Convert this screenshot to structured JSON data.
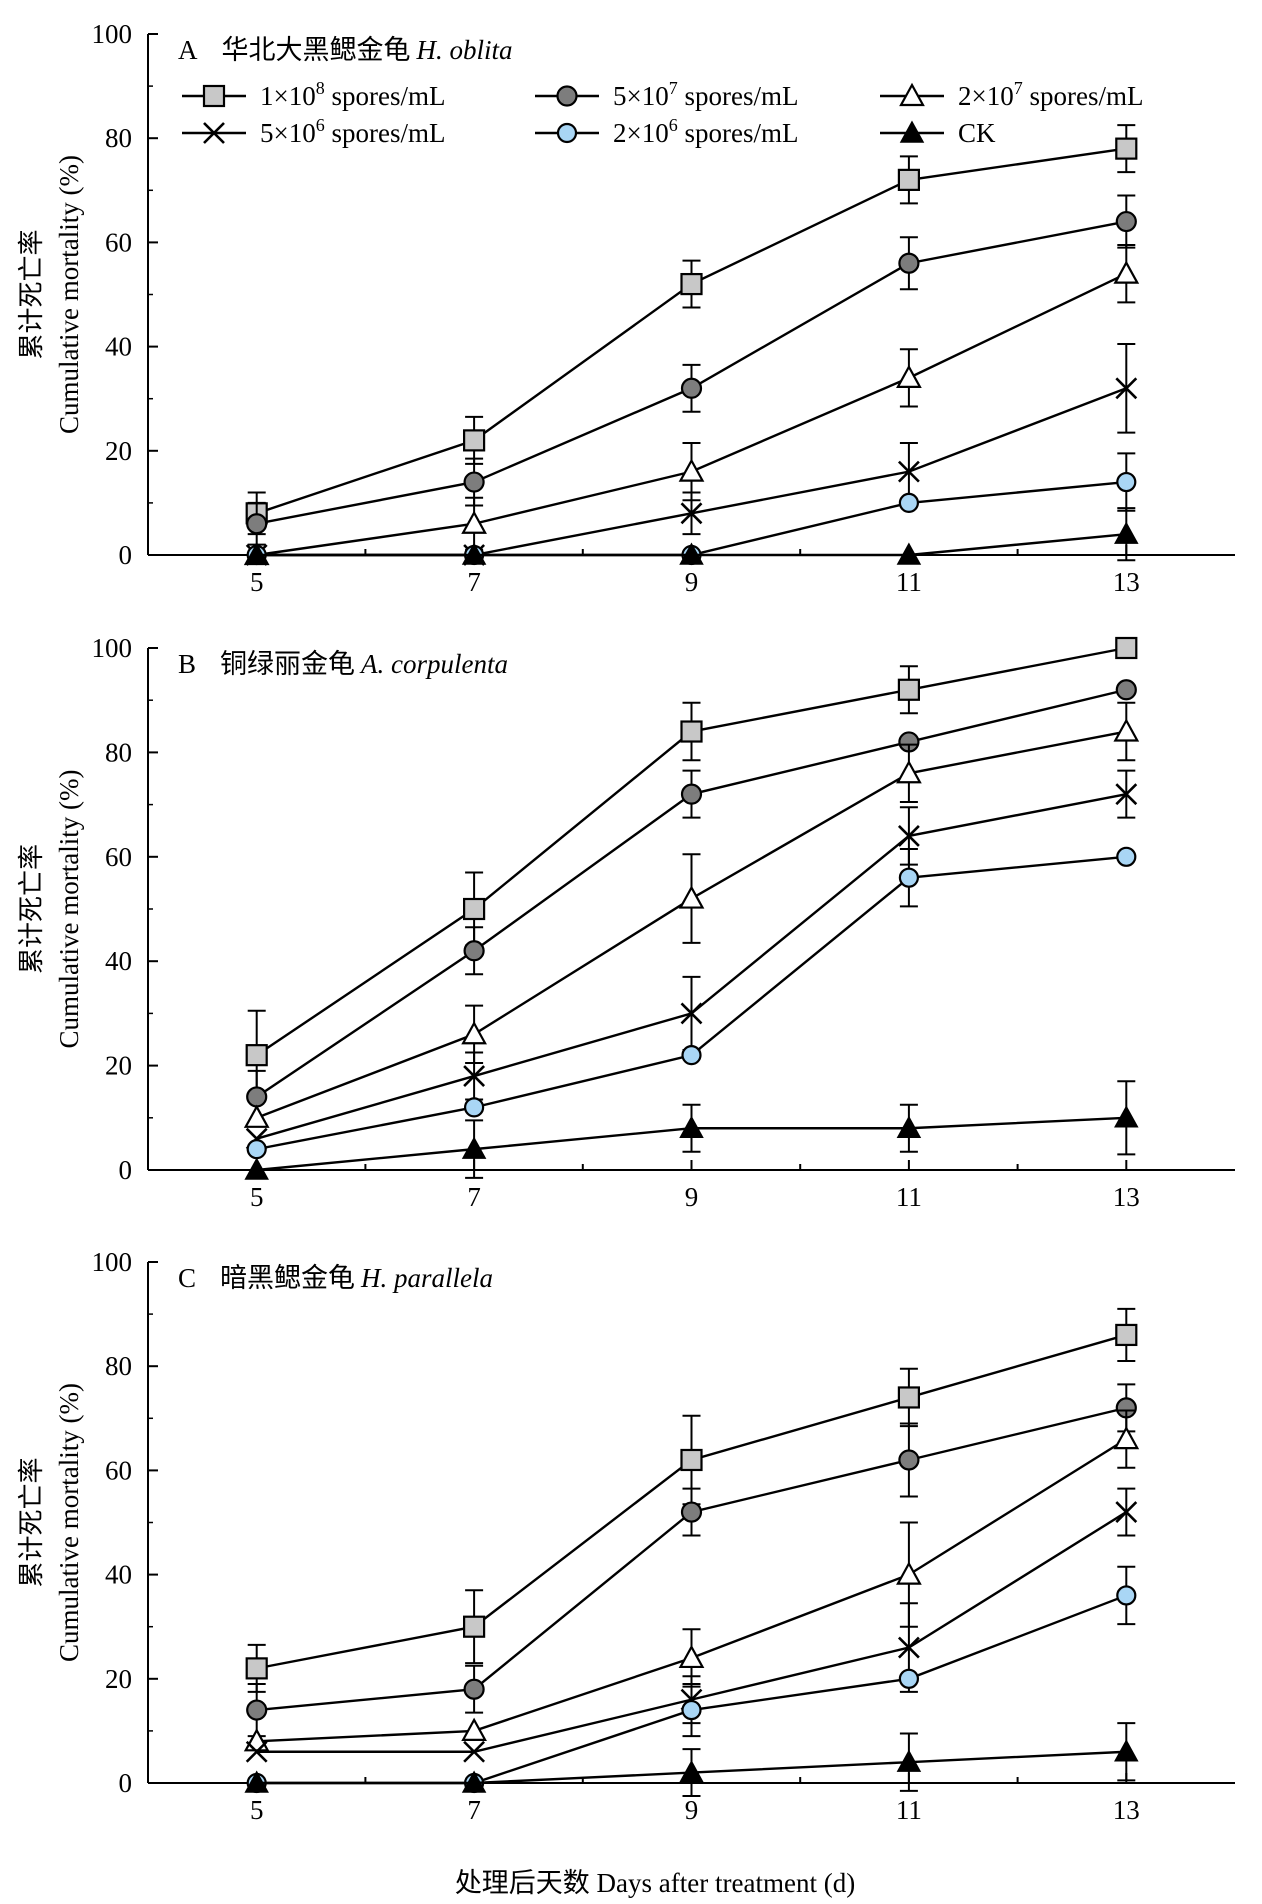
{
  "x_axis_label": "处理后天数 Days after treatment (d)",
  "chart_data": [
    {
      "type": "line",
      "panel_letter": "A",
      "title_cn": "华北大黑鳃金龟",
      "title_species": "H. oblita",
      "ylabel_cn": "累计死亡率",
      "ylabel": "Cumulative mortality (%)",
      "x": [
        5,
        7,
        9,
        11,
        13
      ],
      "xticks": [
        "5",
        "7",
        "9",
        "11",
        "13"
      ],
      "ylim": [
        0,
        100
      ],
      "yticks": [
        "0",
        "20",
        "40",
        "60",
        "80",
        "100"
      ],
      "legend_loc": "top",
      "series": [
        {
          "name": "1×10^8 spores/mL",
          "label_pre": "1×10",
          "label_exp": "8",
          "label_post": " spores/mL",
          "marker": "square-gray",
          "values": [
            8,
            22,
            52,
            72,
            78
          ],
          "errors": [
            4,
            4.5,
            4.5,
            4.5,
            4.5
          ]
        },
        {
          "name": "5×10^7 spores/mL",
          "label_pre": "5×10",
          "label_exp": "7",
          "label_post": " spores/mL",
          "marker": "circle-darkgray",
          "values": [
            6,
            14,
            32,
            56,
            64
          ],
          "errors": [
            4,
            4.5,
            4.5,
            5,
            5
          ]
        },
        {
          "name": "2×10^7 spores/mL",
          "label_pre": "2×10",
          "label_exp": "7",
          "label_post": " spores/mL",
          "marker": "triangle-open",
          "values": [
            0,
            6,
            16,
            34,
            54
          ],
          "errors": [
            0,
            5,
            5.5,
            5.5,
            5.5
          ]
        },
        {
          "name": "5×10^6 spores/mL",
          "label_pre": "5×10",
          "label_exp": "6",
          "label_post": " spores/mL",
          "marker": "cross",
          "values": [
            0,
            0,
            8,
            16,
            32
          ],
          "errors": [
            0,
            0,
            4,
            5.5,
            8.5
          ]
        },
        {
          "name": "2×10^6 spores/mL",
          "label_pre": "2×10",
          "label_exp": "6",
          "label_post": " spores/mL",
          "marker": "circle-lightblue",
          "values": [
            0,
            0,
            0,
            10,
            14
          ],
          "errors": [
            0,
            0,
            0,
            0,
            5.5
          ]
        },
        {
          "name": "CK",
          "label_pre": "CK",
          "label_exp": "",
          "label_post": "",
          "marker": "triangle-filled",
          "values": [
            0,
            0,
            0,
            0,
            4
          ],
          "errors": [
            0,
            0,
            0,
            0,
            5
          ]
        }
      ]
    },
    {
      "type": "line",
      "panel_letter": "B",
      "title_cn": "铜绿丽金龟",
      "title_species": "A. corpulenta",
      "ylabel_cn": "累计死亡率",
      "ylabel": "Cumulative mortality (%)",
      "x": [
        5,
        7,
        9,
        11,
        13
      ],
      "xticks": [
        "5",
        "7",
        "9",
        "11",
        "13"
      ],
      "ylim": [
        0,
        100
      ],
      "yticks": [
        "0",
        "20",
        "40",
        "60",
        "80",
        "100"
      ],
      "series": [
        {
          "name": "1×10^8 spores/mL",
          "marker": "square-gray",
          "values": [
            22,
            50,
            84,
            92,
            100
          ],
          "errors": [
            8.5,
            7,
            5.5,
            4.5,
            0
          ]
        },
        {
          "name": "5×10^7 spores/mL",
          "marker": "circle-darkgray",
          "values": [
            14,
            42,
            72,
            82,
            92
          ],
          "errors": [
            5,
            4.5,
            4.5,
            0,
            0
          ]
        },
        {
          "name": "2×10^7 spores/mL",
          "marker": "triangle-open",
          "values": [
            10,
            26,
            52,
            76,
            84
          ],
          "errors": [
            0,
            5.5,
            8.5,
            5.5,
            5.5
          ]
        },
        {
          "name": "5×10^6 spores/mL",
          "marker": "cross",
          "values": [
            6,
            18,
            30,
            64,
            72
          ],
          "errors": [
            0,
            4.5,
            7,
            5.5,
            4.5
          ]
        },
        {
          "name": "2×10^6 spores/mL",
          "marker": "circle-lightblue",
          "values": [
            4,
            12,
            22,
            56,
            60
          ],
          "errors": [
            0,
            0,
            0,
            5.5,
            0
          ]
        },
        {
          "name": "CK",
          "marker": "triangle-filled",
          "values": [
            0,
            4,
            8,
            8,
            10
          ],
          "errors": [
            0,
            5.5,
            4.5,
            4.5,
            7
          ]
        }
      ]
    },
    {
      "type": "line",
      "panel_letter": "C",
      "title_cn": "暗黑鳃金龟",
      "title_species": "H. parallela",
      "ylabel_cn": "累计死亡率",
      "ylabel": "Cumulative mortality (%)",
      "x": [
        5,
        7,
        9,
        11,
        13
      ],
      "xticks": [
        "5",
        "7",
        "9",
        "11",
        "13"
      ],
      "ylim": [
        0,
        100
      ],
      "yticks": [
        "0",
        "20",
        "40",
        "60",
        "80",
        "100"
      ],
      "series": [
        {
          "name": "1×10^8 spores/mL",
          "marker": "square-gray",
          "values": [
            22,
            30,
            62,
            74,
            86
          ],
          "errors": [
            4.5,
            7,
            8.5,
            5.5,
            5
          ]
        },
        {
          "name": "5×10^7 spores/mL",
          "marker": "circle-darkgray",
          "values": [
            14,
            18,
            52,
            62,
            72
          ],
          "errors": [
            5,
            4.5,
            4.5,
            7,
            4.5
          ]
        },
        {
          "name": "2×10^7 spores/mL",
          "marker": "triangle-open",
          "values": [
            8,
            10,
            24,
            40,
            66
          ],
          "errors": [
            0,
            0,
            5.5,
            10,
            5.5
          ]
        },
        {
          "name": "5×10^6 spores/mL",
          "marker": "cross",
          "values": [
            6,
            6,
            16,
            26,
            52
          ],
          "errors": [
            0,
            0,
            4.5,
            8.5,
            4.5
          ]
        },
        {
          "name": "2×10^6 spores/mL",
          "marker": "circle-lightblue",
          "values": [
            0,
            0,
            14,
            20,
            36
          ],
          "errors": [
            0,
            0,
            5,
            0,
            5.5
          ]
        },
        {
          "name": "CK",
          "marker": "triangle-filled",
          "values": [
            0,
            0,
            2,
            4,
            6
          ],
          "errors": [
            0,
            0,
            4.5,
            5.5,
            5.5
          ]
        }
      ]
    }
  ],
  "colors": {
    "square_fill": "#c8c8c8",
    "circle_dark_fill": "#7d7d7d",
    "circle_light_fill": "#a9d6f5",
    "line": "#000000"
  }
}
